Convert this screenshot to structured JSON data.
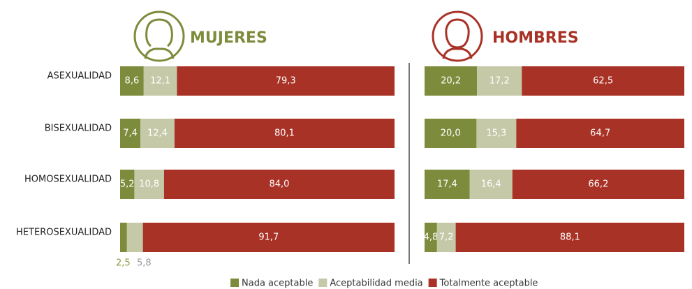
{
  "chart_data": [
    {
      "type": "stacked-bar",
      "title": "MUJERES",
      "title_color": "#7d8c3c",
      "categories": [
        "ASEXUALIDAD",
        "BISEXUALIDAD",
        "HOMOSEXUALIDAD",
        "HETEROSEXUALIDAD"
      ],
      "series": [
        {
          "name": "Nada aceptable",
          "color": "#7d8c3c",
          "values": [
            8.6,
            7.4,
            5.2,
            2.5
          ],
          "value_labels": [
            "8,6",
            "7,4",
            "5,2",
            "2,5"
          ]
        },
        {
          "name": "Aceptabilidad media",
          "color": "#c5c9a8",
          "values": [
            12.1,
            12.4,
            10.8,
            5.8
          ],
          "value_labels": [
            "12,1",
            "12,4",
            "10,8",
            "5,8"
          ]
        },
        {
          "name": "Totalmente aceptable",
          "color": "#a93226",
          "values": [
            79.3,
            80.1,
            84.0,
            91.7
          ],
          "value_labels": [
            "79,3",
            "80,1",
            "84,0",
            "91,7"
          ]
        }
      ]
    },
    {
      "type": "stacked-bar",
      "title": "HOMBRES",
      "title_color": "#a93226",
      "series": [
        {
          "color": "#7d8c3c",
          "values": [
            20.2,
            20.0,
            17.4,
            4.8
          ],
          "value_labels": [
            "20,2",
            "20,0",
            "17,4",
            "4,8"
          ]
        },
        {
          "color": "#c5c9a8",
          "values": [
            17.2,
            15.3,
            16.4,
            7.2
          ],
          "value_labels": [
            "17,2",
            "15,3",
            "16,4",
            "7,2"
          ]
        },
        {
          "color": "#a93226",
          "values": [
            62.5,
            64.7,
            66.2,
            88.1
          ],
          "value_labels": [
            "62,5",
            "64,7",
            "66,2",
            "88,1"
          ]
        }
      ]
    }
  ]
}
